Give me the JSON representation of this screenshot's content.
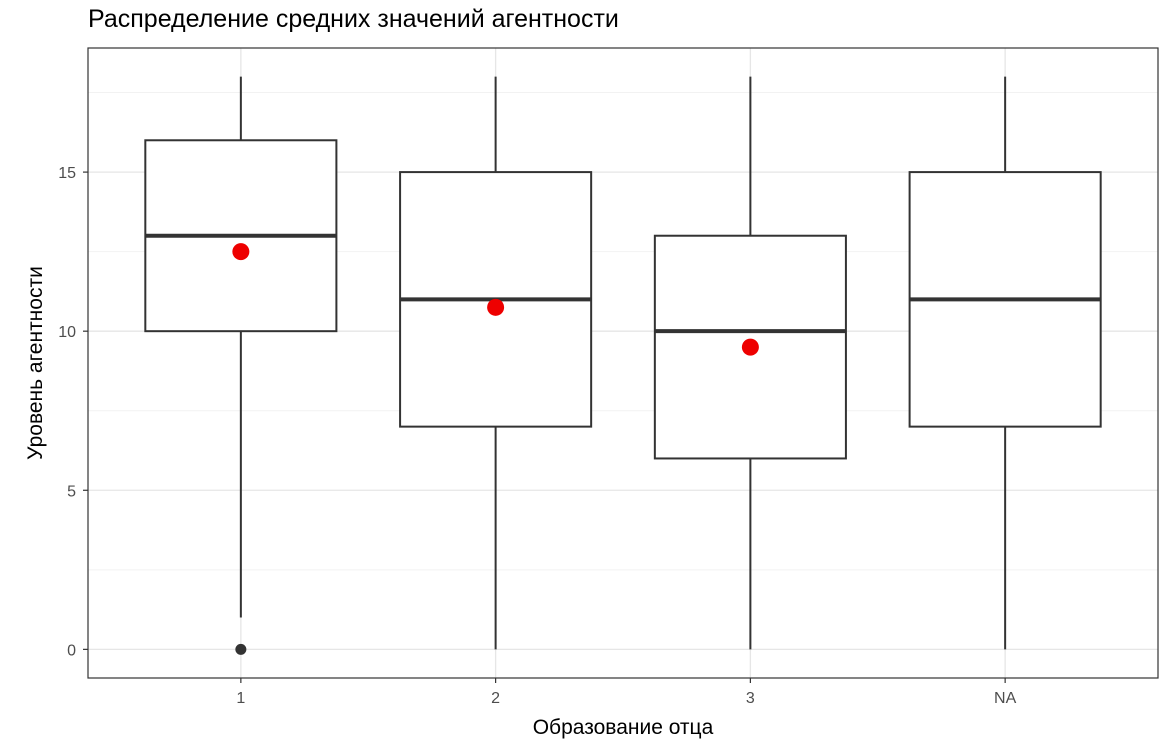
{
  "chart_data": {
    "type": "boxplot",
    "title": "Распределение средних значений агентности",
    "xlabel": "Образование отца",
    "ylabel": "Уровень агентности",
    "categories": [
      "1",
      "2",
      "3",
      "NA"
    ],
    "ylim": [
      -0.9,
      18.9
    ],
    "yticks": [
      0,
      5,
      10,
      15
    ],
    "ytick_labels": [
      "0",
      "5",
      "10",
      "15"
    ],
    "grid": true,
    "boxes": [
      {
        "category": "1",
        "whisker_low": 1,
        "q1": 10,
        "median": 13,
        "q3": 16,
        "whisker_high": 18,
        "mean": 12.5,
        "outliers": [
          0
        ]
      },
      {
        "category": "2",
        "whisker_low": 0,
        "q1": 7,
        "median": 11,
        "q3": 15,
        "whisker_high": 18,
        "mean": 10.75,
        "outliers": []
      },
      {
        "category": "3",
        "whisker_low": 0,
        "q1": 6,
        "median": 10,
        "q3": 13,
        "whisker_high": 18,
        "mean": 9.5,
        "outliers": []
      },
      {
        "category": "NA",
        "whisker_low": 0,
        "q1": 7,
        "median": 11,
        "q3": 15,
        "whisker_high": 18,
        "mean": null,
        "outliers": []
      }
    ],
    "colors": {
      "box_line": "#333333",
      "mean_point": "#ee0000",
      "outlier": "#333333",
      "grid_major": "#e6e6e6",
      "grid_minor": "#f2f2f2",
      "panel_border": "#333333",
      "tick_label": "#4d4d4d"
    }
  }
}
